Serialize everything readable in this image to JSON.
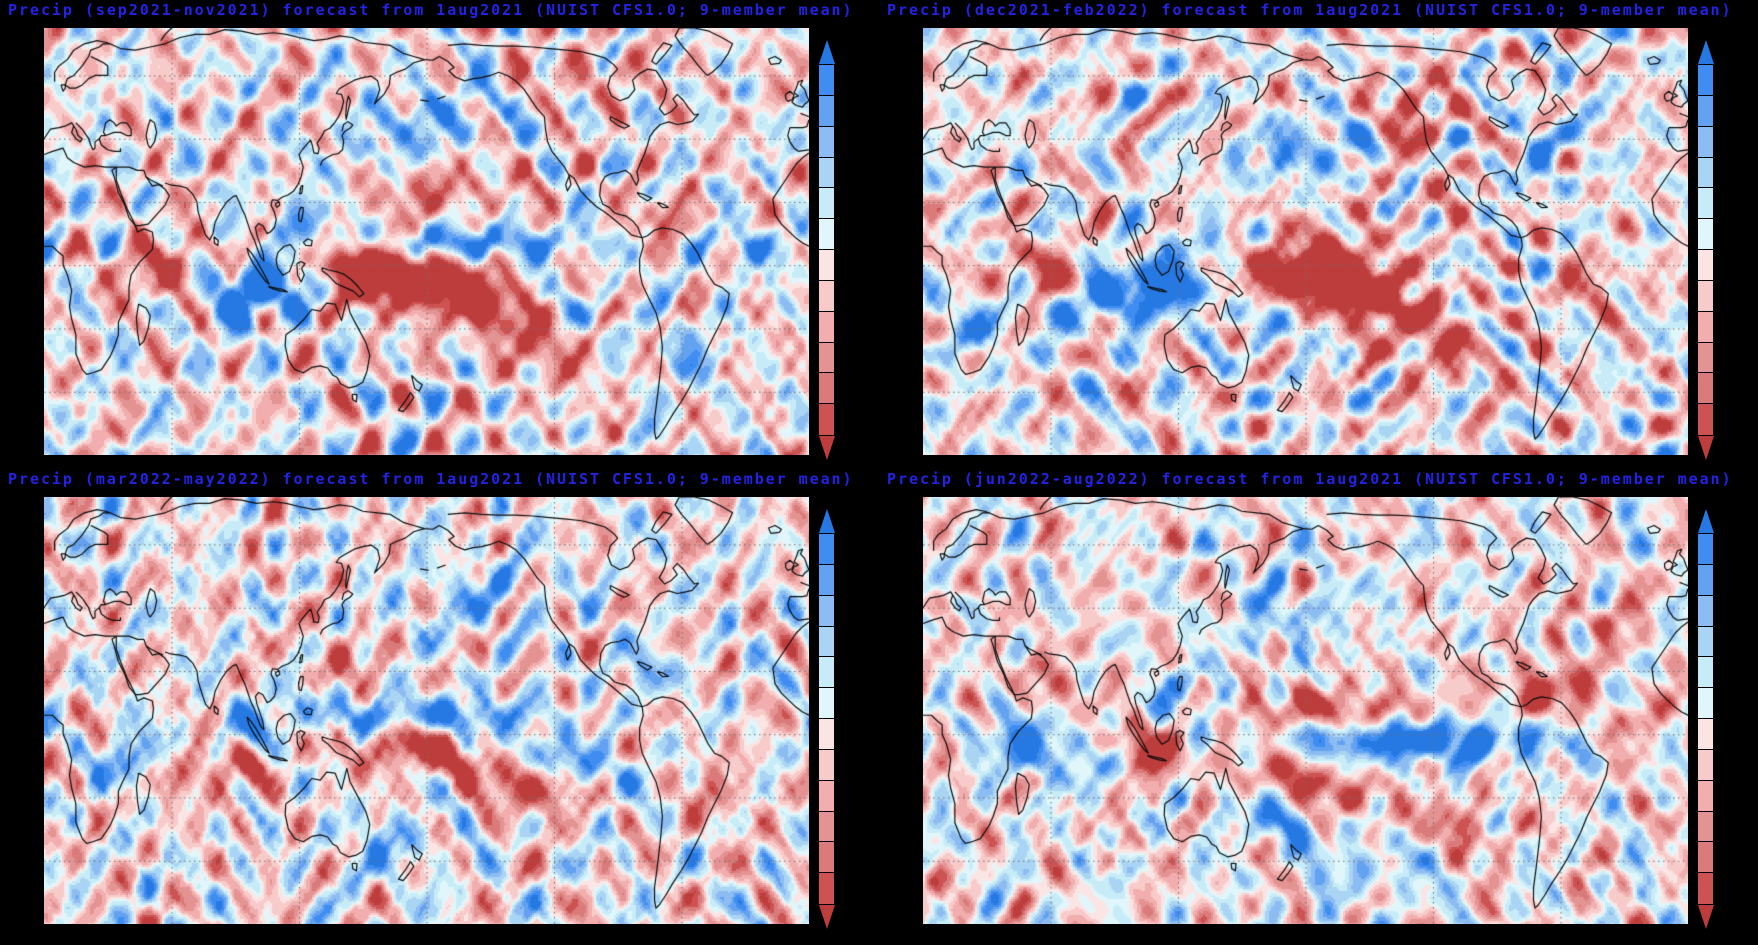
{
  "chart_data": {
    "type": "heatmap",
    "figure_kind": "2x2 grid of global seasonal precipitation anomaly forecast maps (GrADS-style shaded contour maps)",
    "projection": {
      "kind": "equirectangular",
      "lon_range": [
        0,
        360
      ],
      "lat_range": [
        -60,
        75
      ],
      "center": "Pacific-centered, 0E at both edges"
    },
    "gridlines": {
      "lat_step": 20,
      "lon_step": 60,
      "style": "dotted"
    },
    "style": {
      "background": "#000000",
      "title_color": "#2323e8",
      "coastline_color": "#0b0b0b",
      "gridline_color": "#6e6e6e"
    },
    "colorbar": {
      "position": "right of each map",
      "orientation": "vertical",
      "tick_labels": [],
      "top_arrow_color": "#2679e2",
      "bottom_arrow_color": "#bd3d3d",
      "segments_top_to_bottom": [
        "#3f8df0",
        "#63a2f1",
        "#8cbcf1",
        "#aad4f4",
        "#c8ecf7",
        "#e1f6fa",
        "#fbe5e4",
        "#f7cbca",
        "#f2aeae",
        "#e49393",
        "#da7a7a",
        "#cd5353"
      ],
      "meaning_top": "positive (wet) precipitation anomaly",
      "meaning_bottom": "negative (dry) precipitation anomaly"
    },
    "panels": [
      {
        "id": "son2021",
        "title": "Precip (sep2021-nov2021) forecast from 1aug2021 (NUIST CFS1.0; 9-member mean)",
        "variable": "Precip",
        "season": "sep2021-nov2021",
        "init_date": "1aug2021",
        "model": "NUIST CFS1.0",
        "ensemble": "9-member mean",
        "anomalies": [
          {
            "label": "dry band equatorial central-to-SE Pacific",
            "lon": 190,
            "lat": -7,
            "sx": 40,
            "sy": 6.5,
            "rot": -9,
            "amp": -1.6
          },
          {
            "label": "dry core near New Guinea / Solomon Sea",
            "lon": 152,
            "lat": -4,
            "sx": 14,
            "sy": 6,
            "rot": -5,
            "amp": -1.2
          },
          {
            "label": "dry western equatorial Indian Ocean",
            "lon": 60,
            "lat": -2,
            "sx": 15,
            "sy": 6,
            "rot": 0,
            "amp": -1.1
          },
          {
            "label": "dry subtropical North Pacific",
            "lon": 185,
            "lat": 24,
            "sx": 28,
            "sy": 6,
            "rot": 4,
            "amp": -0.6
          },
          {
            "label": "dry Caribbean",
            "lon": 293,
            "lat": 14,
            "sx": 11,
            "sy": 5,
            "rot": 0,
            "amp": -0.65
          },
          {
            "label": "dry subtropical SE Pacific",
            "lon": 235,
            "lat": -27,
            "sx": 22,
            "sy": 7,
            "rot": -10,
            "amp": -0.55
          },
          {
            "label": "dry NW Canada",
            "lon": 250,
            "lat": 60,
            "sx": 18,
            "sy": 6,
            "rot": 0,
            "amp": -0.5
          },
          {
            "label": "wet SE Indian Ocean off Sumatra-Java",
            "lon": 103,
            "lat": -9,
            "sx": 17,
            "sy": 6,
            "rot": 8,
            "amp": 1.35
          },
          {
            "label": "wet central equatorial Indian Ocean",
            "lon": 83,
            "lat": -4,
            "sx": 10,
            "sy": 5,
            "rot": 0,
            "amp": 0.8
          },
          {
            "label": "wet Philippines / South China Sea",
            "lon": 122,
            "lat": 13,
            "sx": 11,
            "sy": 7,
            "rot": 0,
            "amp": 0.85
          },
          {
            "label": "wet narrow 5-8N band across Pacific",
            "lon": 200,
            "lat": 7,
            "sx": 38,
            "sy": 3.5,
            "rot": 0,
            "amp": 1.05
          },
          {
            "label": "wet SW Pacific south of dry band",
            "lon": 245,
            "lat": -14,
            "sx": 20,
            "sy": 5,
            "rot": -14,
            "amp": 0.85
          },
          {
            "label": "wet North Pacific Japan-to-Alaska band",
            "lon": 178,
            "lat": 44,
            "sx": 30,
            "sy": 8,
            "rot": 10,
            "amp": 0.6
          },
          {
            "label": "wet equatorial Atlantic ITCZ",
            "lon": 330,
            "lat": 6,
            "sx": 16,
            "sy": 4,
            "rot": 0,
            "amp": 0.7
          },
          {
            "label": "wet SE South America",
            "lon": 300,
            "lat": -29,
            "sx": 12,
            "sy": 7,
            "rot": 0,
            "amp": 0.5
          }
        ]
      },
      {
        "id": "djf2021",
        "title": "Precip (dec2021-feb2022) forecast from 1aug2021 (NUIST CFS1.0; 9-member mean)",
        "variable": "Precip",
        "season": "dec2021-feb2022",
        "init_date": "1aug2021",
        "model": "NUIST CFS1.0",
        "ensemble": "9-member mean",
        "anomalies": [
          {
            "label": "strong dry blob west-central equatorial Pacific",
            "lon": 182,
            "lat": -2,
            "sx": 26,
            "sy": 9,
            "rot": -6,
            "amp": -1.7
          },
          {
            "label": "dry SE-tilted extension toward 20S",
            "lon": 215,
            "lat": -10,
            "sx": 22,
            "sy": 5.5,
            "rot": -13,
            "amp": -0.9
          },
          {
            "label": "dry western Indian Ocean",
            "lon": 57,
            "lat": -5,
            "sx": 14,
            "sy": 7,
            "rot": 0,
            "amp": -1.05
          },
          {
            "label": "dry NE Pacific / Pacific Northwest",
            "lon": 228,
            "lat": 46,
            "sx": 13,
            "sy": 8,
            "rot": 18,
            "amp": -0.9
          },
          {
            "label": "dry Mexico / southern US",
            "lon": 262,
            "lat": 24,
            "sx": 15,
            "sy": 5.5,
            "rot": 0,
            "amp": -0.55
          },
          {
            "label": "dry subtropical SE Pacific",
            "lon": 240,
            "lat": -26,
            "sx": 20,
            "sy": 7,
            "rot": -8,
            "amp": -0.6
          },
          {
            "label": "dry NE Brazil",
            "lon": 315,
            "lat": -6,
            "sx": 11,
            "sy": 6,
            "rot": 0,
            "amp": -0.55
          },
          {
            "label": "wet Maritime Continent",
            "lon": 112,
            "lat": -6,
            "sx": 18,
            "sy": 6.5,
            "rot": 0,
            "amp": 1.25
          },
          {
            "label": "wet southern Indian Ocean band near 10S",
            "lon": 75,
            "lat": -11,
            "sx": 24,
            "sy": 5.5,
            "rot": 4,
            "amp": 0.95
          },
          {
            "label": "wet west Pacific 5-10N band",
            "lon": 150,
            "lat": 8,
            "sx": 20,
            "sy": 4.5,
            "rot": 0,
            "amp": 0.8
          },
          {
            "label": "wet central North Pacific band",
            "lon": 185,
            "lat": 37,
            "sx": 26,
            "sy": 6.5,
            "rot": 7,
            "amp": 0.75
          },
          {
            "label": "wet SW Pacific near 15S",
            "lon": 168,
            "lat": -17,
            "sx": 14,
            "sy": 5,
            "rot": -10,
            "amp": 0.75
          },
          {
            "label": "wet Gulf of Mexico / SE US",
            "lon": 277,
            "lat": 26,
            "sx": 13,
            "sy": 5.5,
            "rot": 4,
            "amp": 0.7
          },
          {
            "label": "wet southern Africa",
            "lon": 25,
            "lat": -20,
            "sx": 12,
            "sy": 7,
            "rot": 0,
            "amp": 0.5
          },
          {
            "label": "wet NW Atlantic",
            "lon": 300,
            "lat": 41,
            "sx": 11,
            "sy": 6,
            "rot": 8,
            "amp": 0.5
          }
        ]
      },
      {
        "id": "mam2022",
        "title": "Precip (mar2022-may2022) forecast from 1aug2021 (NUIST CFS1.0; 9-member mean)",
        "variable": "Precip",
        "season": "mar2022-may2022",
        "init_date": "1aug2021",
        "model": "NUIST CFS1.0",
        "ensemble": "9-member mean",
        "anomalies": [
          {
            "label": "dry equatorial date-line band",
            "lon": 168,
            "lat": -3,
            "sx": 24,
            "sy": 5.5,
            "rot": -5,
            "amp": -1.15
          },
          {
            "label": "dry SE subtropical extension",
            "lon": 213,
            "lat": -12,
            "sx": 18,
            "sy": 5,
            "rot": -12,
            "amp": -0.6
          },
          {
            "label": "dry central Indian Ocean near 10S",
            "lon": 78,
            "lat": -12,
            "sx": 20,
            "sy": 5.5,
            "rot": 5,
            "amp": -0.75
          },
          {
            "label": "dry subtropical NW Pacific",
            "lon": 138,
            "lat": 22,
            "sx": 14,
            "sy": 6,
            "rot": 0,
            "amp": -0.5
          },
          {
            "label": "dry SE Pacific blob",
            "lon": 232,
            "lat": -18,
            "sx": 12,
            "sy": 5.5,
            "rot": 0,
            "amp": -0.8
          },
          {
            "label": "dry interior Brazil",
            "lon": 318,
            "lat": -20,
            "sx": 11,
            "sy": 7,
            "rot": 0,
            "amp": -0.5
          },
          {
            "label": "wet band north of equator W-C Pacific",
            "lon": 185,
            "lat": 6,
            "sx": 33,
            "sy": 4,
            "rot": 0,
            "amp": 1.0
          },
          {
            "label": "wet near-equatorial west Pacific",
            "lon": 150,
            "lat": 2,
            "sx": 13,
            "sy": 4.5,
            "rot": 0,
            "amp": 0.7
          },
          {
            "label": "wet SE Pacific diagonal band",
            "lon": 242,
            "lat": -8,
            "sx": 23,
            "sy": 4.5,
            "rot": -10,
            "amp": 0.85
          },
          {
            "label": "wet East Africa coast / W Indian Ocean",
            "lon": 42,
            "lat": -9,
            "sx": 10,
            "sy": 6,
            "rot": 0,
            "amp": 0.95
          },
          {
            "label": "wet Bay of Bengal - Sumatra",
            "lon": 95,
            "lat": 2,
            "sx": 11,
            "sy": 5,
            "rot": 0,
            "amp": 0.7
          },
          {
            "label": "wet Philippines",
            "lon": 121,
            "lat": 9,
            "sx": 9,
            "sy": 5,
            "rot": 0,
            "amp": 0.65
          },
          {
            "label": "wet Caribbean",
            "lon": 282,
            "lat": 20,
            "sx": 10,
            "sy": 5,
            "rot": 0,
            "amp": 0.6
          },
          {
            "label": "wet Tasman Sea",
            "lon": 163,
            "lat": -35,
            "sx": 16,
            "sy": 7,
            "rot": 0,
            "amp": 0.55
          },
          {
            "label": "wet North Pacific (mild)",
            "lon": 205,
            "lat": 44,
            "sx": 24,
            "sy": 8,
            "rot": 5,
            "amp": 0.45
          }
        ]
      },
      {
        "id": "jja2022",
        "title": "Precip (jun2022-aug2022) forecast from 1aug2021 (NUIST CFS1.0; 9-member mean)",
        "variable": "Precip",
        "season": "jun2022-aug2022",
        "init_date": "1aug2021",
        "model": "NUIST CFS1.0",
        "ensemble": "9-member mean",
        "anomalies": [
          {
            "label": "wet equatorial east Pacific band",
            "lon": 237,
            "lat": -2,
            "sx": 42,
            "sy": 4.5,
            "rot": 0,
            "amp": 1.4
          },
          {
            "label": "wet western equatorial Indian Ocean",
            "lon": 47,
            "lat": -2,
            "sx": 11,
            "sy": 6,
            "rot": 0,
            "amp": 1.15
          },
          {
            "label": "wet southern Indian Ocean band",
            "lon": 82,
            "lat": -9,
            "sx": 16,
            "sy": 5,
            "rot": 0,
            "amp": 0.75
          },
          {
            "label": "wet South China Sea / Philippine Sea",
            "lon": 122,
            "lat": 11,
            "sx": 12,
            "sy": 6,
            "rot": 0,
            "amp": 0.65
          },
          {
            "label": "wet south of SPCZ",
            "lon": 168,
            "lat": -27,
            "sx": 17,
            "sy": 5.5,
            "rot": -8,
            "amp": 0.7
          },
          {
            "label": "wet North Pacific",
            "lon": 172,
            "lat": 38,
            "sx": 20,
            "sy": 7,
            "rot": 6,
            "amp": 0.5
          },
          {
            "label": "wet southern mid-latitude Pacific",
            "lon": 215,
            "lat": -42,
            "sx": 20,
            "sy": 7,
            "rot": 0,
            "amp": 0.5
          },
          {
            "label": "dry Sumatra-Java core",
            "lon": 104,
            "lat": -6,
            "sx": 11,
            "sy": 5.5,
            "rot": 0,
            "amp": -1.5
          },
          {
            "label": "dry band near 8N central Pacific",
            "lon": 190,
            "lat": 8,
            "sx": 33,
            "sy": 4.5,
            "rot": 0,
            "amp": -0.85
          },
          {
            "label": "dry Caribbean - Central America",
            "lon": 292,
            "lat": 14,
            "sx": 14,
            "sy": 5.5,
            "rot": 0,
            "amp": -1.05
          },
          {
            "label": "dry SPCZ band",
            "lon": 183,
            "lat": -16,
            "sx": 26,
            "sy": 5,
            "rot": -11,
            "amp": -0.95
          },
          {
            "label": "dry subtropical SE Pacific",
            "lon": 252,
            "lat": -30,
            "sx": 18,
            "sy": 7,
            "rot": 0,
            "amp": -0.5
          },
          {
            "label": "dry Arabian Sea / NW India",
            "lon": 60,
            "lat": 16,
            "sx": 14,
            "sy": 6,
            "rot": 0,
            "amp": -0.5
          },
          {
            "label": "dry equatorial Atlantic",
            "lon": 336,
            "lat": 3,
            "sx": 12,
            "sy": 4.5,
            "rot": 0,
            "amp": -0.6
          },
          {
            "label": "dry North Atlantic",
            "lon": 318,
            "lat": 35,
            "sx": 14,
            "sy": 7,
            "rot": 0,
            "amp": -0.45
          }
        ]
      }
    ]
  }
}
